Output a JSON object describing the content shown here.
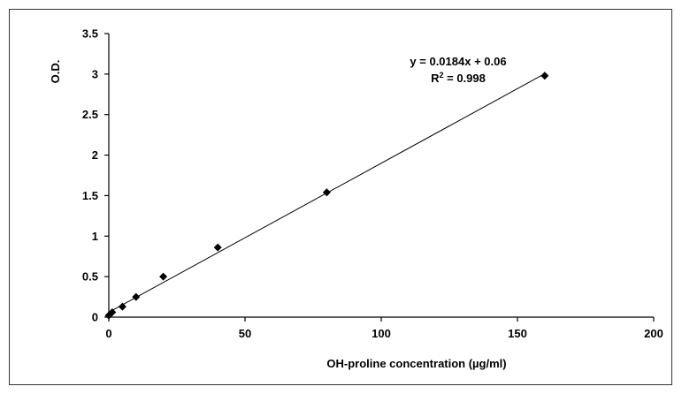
{
  "chart_data": {
    "type": "scatter",
    "title": "",
    "xlabel": "OH-proline concentration  (µg/ml)",
    "ylabel": "O.D.",
    "xlim": [
      0,
      200
    ],
    "ylim": [
      0,
      3.5
    ],
    "x_ticks": [
      0,
      50,
      100,
      150,
      200
    ],
    "y_ticks": [
      0,
      0.5,
      1,
      1.5,
      2,
      2.5,
      3,
      3.5
    ],
    "x_tick_labels": [
      "0",
      "50",
      "100",
      "150",
      "200"
    ],
    "y_tick_labels": [
      "0",
      "0.5",
      "1",
      "1.5",
      "2",
      "2.5",
      "3",
      "3.5"
    ],
    "grid": false,
    "legend": false,
    "series": [
      {
        "points": [
          {
            "x": 0,
            "y": 0.02
          },
          {
            "x": 1.25,
            "y": 0.06
          },
          {
            "x": 5,
            "y": 0.13
          },
          {
            "x": 10,
            "y": 0.25
          },
          {
            "x": 20,
            "y": 0.5
          },
          {
            "x": 40,
            "y": 0.86
          },
          {
            "x": 80,
            "y": 1.54
          },
          {
            "x": 160,
            "y": 2.98
          }
        ],
        "marker": "diamond",
        "color": "#000000"
      }
    ],
    "trendline": {
      "slope": 0.0184,
      "intercept": 0.06,
      "x_range": [
        0,
        160
      ],
      "equation_label": "y = 0.0184x + 0.06",
      "r2_label_prefix": "R",
      "r2_label_sup": "2",
      "r2_label_suffix": " = 0.998",
      "color": "#000000"
    }
  }
}
